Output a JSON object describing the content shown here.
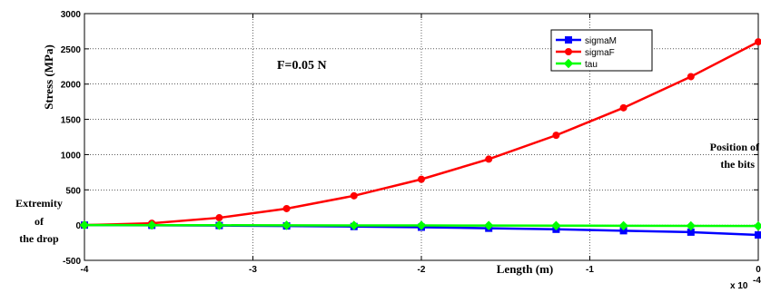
{
  "chart_data": {
    "type": "line",
    "xlabel": "Length  (m)",
    "ylabel": "Stress (MPa)",
    "x_exponent_label": "x 10",
    "x_exponent_power": "-4",
    "xlim": [
      -4,
      0
    ],
    "ylim": [
      -500,
      3000
    ],
    "x_ticks": [
      -4,
      -3,
      -2,
      -1,
      0
    ],
    "x_tick_labels": [
      "-4",
      "-3",
      "-2",
      "-1",
      "0"
    ],
    "y_ticks": [
      -500,
      0,
      500,
      1000,
      1500,
      2000,
      2500,
      3000
    ],
    "y_tick_labels": [
      "-500",
      "0",
      "500",
      "1000",
      "1500",
      "2000",
      "2500",
      "3000"
    ],
    "grid": true,
    "legend_position": "top-right",
    "x": [
      -4,
      -3.6,
      -3.2,
      -2.8,
      -2.4,
      -2.0,
      -1.6,
      -1.2,
      -0.8,
      -0.4,
      0
    ],
    "series": [
      {
        "name": "sigmaM",
        "color": "#0000ff",
        "marker": "square",
        "values": [
          0,
          -3,
          -6,
          -12,
          -20,
          -30,
          -45,
          -60,
          -80,
          -100,
          -140
        ]
      },
      {
        "name": "sigmaF",
        "color": "#ff0000",
        "marker": "circle",
        "values": [
          0,
          26,
          104,
          234,
          416,
          650,
          936,
          1274,
          1664,
          2106,
          2600
        ]
      },
      {
        "name": "tau",
        "color": "#00ff00",
        "marker": "diamond",
        "values": [
          0,
          -1,
          -2,
          -3,
          -4,
          -5,
          -6,
          -8,
          -9,
          -11,
          -13
        ]
      }
    ],
    "annotations": {
      "force": "F=0.05 N",
      "left_line1": "Extremity",
      "left_line2": "of",
      "left_line3": "the drop",
      "right_line1": "Position of",
      "right_line2": "the bits"
    }
  }
}
